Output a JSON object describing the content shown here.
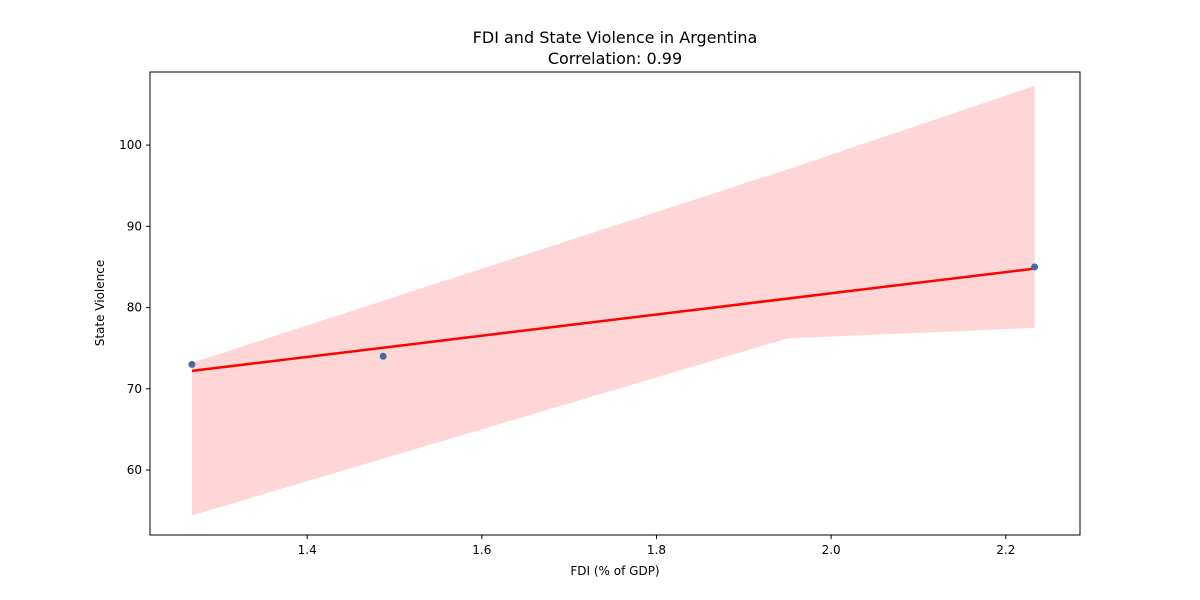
{
  "chart_data": {
    "type": "scatter",
    "title": "FDI and State Violence in Argentina",
    "subtitle": "Correlation: 0.99",
    "xlabel": "FDI (% of GDP)",
    "ylabel": "State Violence",
    "xlim": [
      1.22,
      2.285
    ],
    "ylim": [
      52,
      109
    ],
    "xticks": [
      1.4,
      1.6,
      1.8,
      2.0,
      2.2
    ],
    "xtick_labels": [
      "1.4",
      "1.6",
      "1.8",
      "2.0",
      "2.2"
    ],
    "yticks": [
      60,
      70,
      80,
      90,
      100
    ],
    "ytick_labels": [
      "60",
      "70",
      "80",
      "90",
      "100"
    ],
    "grid": false,
    "points": [
      {
        "x": 1.268,
        "y": 73
      },
      {
        "x": 1.487,
        "y": 74
      },
      {
        "x": 2.233,
        "y": 85
      }
    ],
    "regression_line": {
      "x": [
        1.268,
        2.233
      ],
      "y": [
        72.2,
        84.8
      ]
    },
    "confidence_band": {
      "x": [
        1.268,
        1.95,
        2.233
      ],
      "upper": [
        73.2,
        97.0,
        107.3
      ],
      "lower": [
        54.4,
        76.2,
        77.5
      ]
    },
    "colors": {
      "point": "#3a6ea5",
      "line": "#ff0000",
      "band": "#ffd6d6"
    }
  }
}
